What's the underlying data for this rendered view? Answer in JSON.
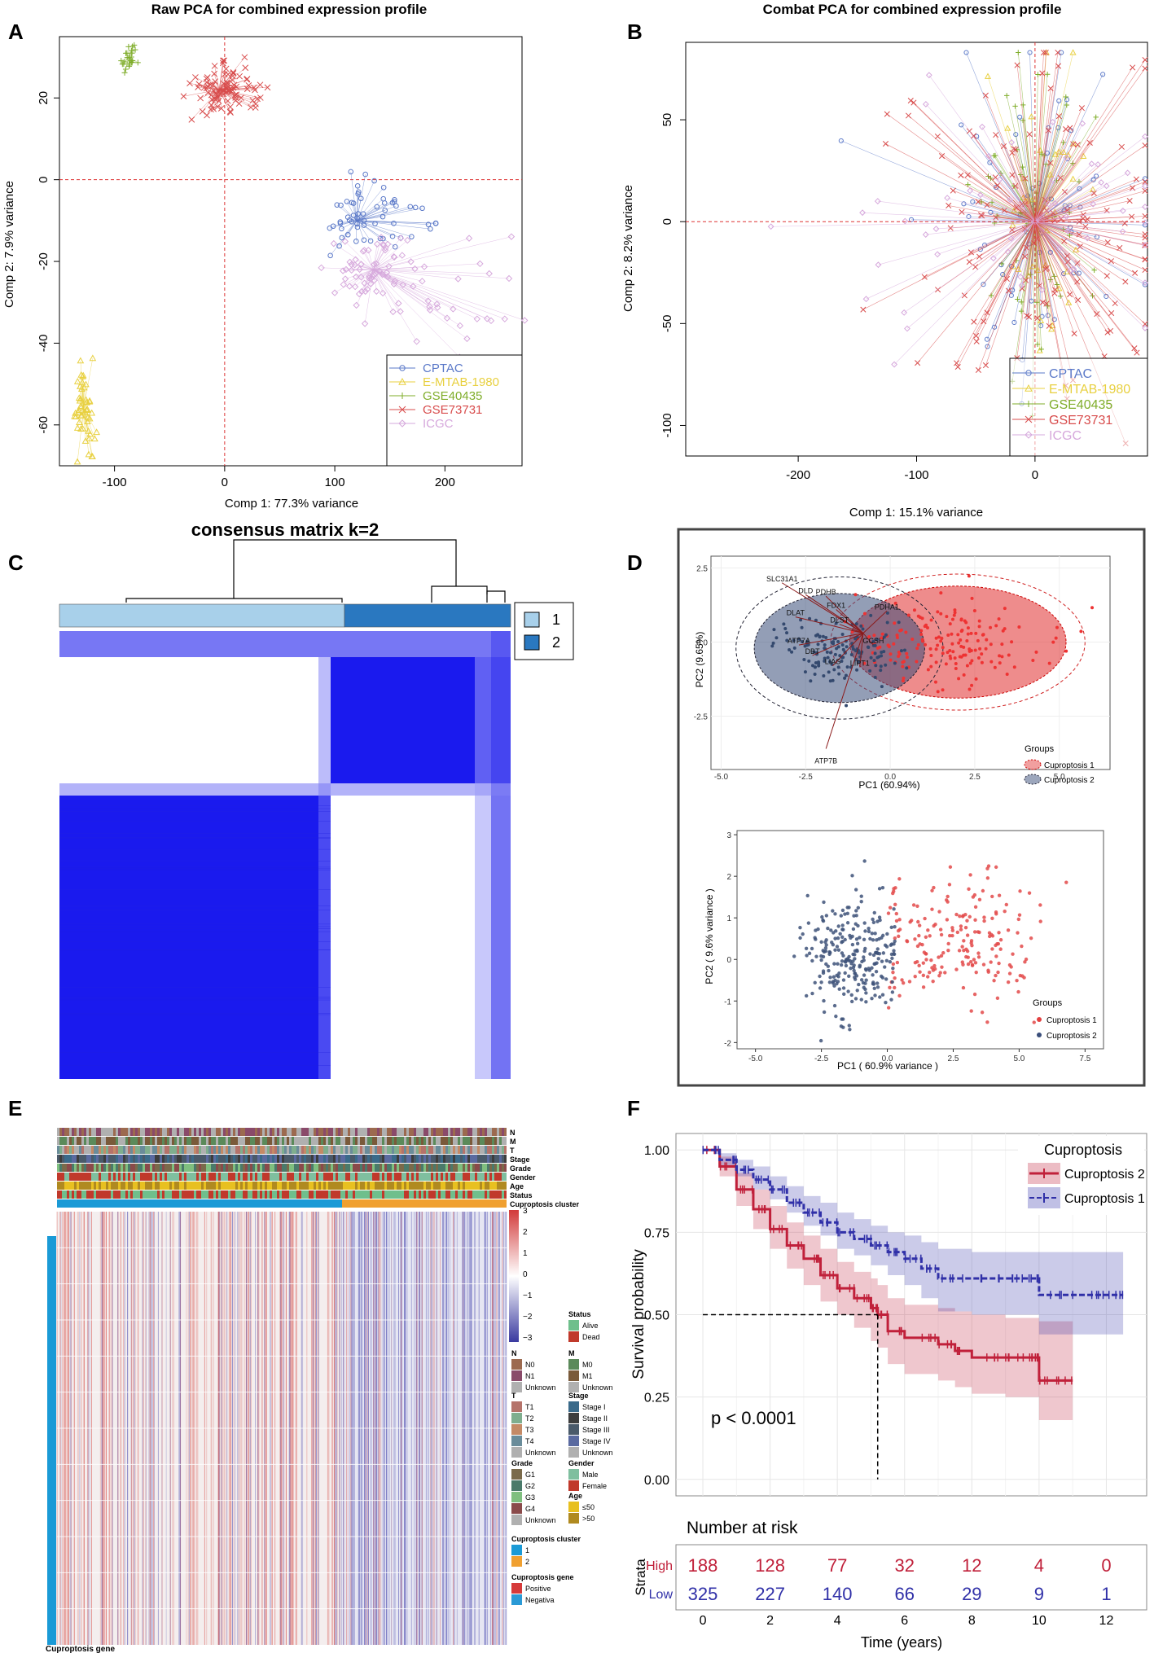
{
  "panel_labels": [
    "A",
    "B",
    "C",
    "D",
    "E",
    "F"
  ],
  "colors": {
    "cptac": "#5a78c8",
    "emtab": "#e8d040",
    "gse40435": "#7fad2a",
    "gse73731": "#d84c4c",
    "icgc": "#d6a8dc",
    "cluster1": "#a8d0ea",
    "cluster2": "#2a78c0",
    "consensus": "#1a1aee",
    "cup1_red": "#e34040",
    "cup2_blue": "#3a4e7a",
    "km_red": "#c0203a",
    "km_blue": "#3030a8"
  },
  "chart_data": [
    {
      "id": "A",
      "type": "scatter",
      "title": "Raw PCA for combined expression profile",
      "xlabel": "Comp 1: 77.3% variance",
      "ylabel": "Comp 2: 7.9% variance",
      "xlim": [
        -150,
        270
      ],
      "ylim": [
        -70,
        35
      ],
      "xticks": [
        -100,
        0,
        100,
        200
      ],
      "yticks": [
        -60,
        -40,
        -20,
        0,
        20
      ],
      "reference_lines": {
        "x": 0,
        "y": 0
      },
      "legend_position": "bottom-right",
      "series": [
        {
          "name": "CPTAC",
          "marker": "circle",
          "center": [
            120,
            -10
          ],
          "spread": [
            12,
            6
          ],
          "tail": [
            60,
            0
          ]
        },
        {
          "name": "E-MTAB-1980",
          "marker": "triangle",
          "center": [
            -128,
            -56
          ],
          "spread": [
            5,
            6
          ],
          "tail": [
            0,
            0
          ]
        },
        {
          "name": "GSE40435",
          "marker": "plus",
          "center": [
            -87,
            30
          ],
          "spread": [
            3,
            2
          ],
          "tail": [
            0,
            0
          ]
        },
        {
          "name": "GSE73731",
          "marker": "cross",
          "center": [
            -5,
            22
          ],
          "spread": [
            12,
            3
          ],
          "tail": [
            30,
            0
          ]
        },
        {
          "name": "ICGC",
          "marker": "diamond",
          "center": [
            135,
            -22
          ],
          "spread": [
            20,
            5
          ],
          "tail": [
            120,
            5
          ]
        }
      ]
    },
    {
      "id": "B",
      "type": "scatter",
      "title": "Combat PCA for combined expression profile",
      "xlabel": "Comp 1: 15.1% variance",
      "ylabel": "Comp 2: 8.2% variance",
      "xlim": [
        -295,
        95
      ],
      "ylim": [
        -115,
        88
      ],
      "xticks": [
        -200,
        -100,
        0
      ],
      "yticks": [
        -100,
        -50,
        0,
        50
      ],
      "reference_lines": {
        "x": 0,
        "y": 0
      },
      "legend_position": "bottom-right",
      "series": [
        {
          "name": "CPTAC",
          "marker": "circle"
        },
        {
          "name": "E-MTAB-1980",
          "marker": "triangle"
        },
        {
          "name": "GSE40435",
          "marker": "plus"
        },
        {
          "name": "GSE73731",
          "marker": "cross"
        },
        {
          "name": "ICGC",
          "marker": "diamond"
        }
      ]
    },
    {
      "id": "C",
      "type": "heatmap",
      "title": "consensus matrix k=2",
      "legend": [
        {
          "label": "1"
        },
        {
          "label": "2"
        }
      ]
    },
    {
      "id": "D1",
      "type": "scatter",
      "xlabel": "PC1 (60.94%)",
      "ylabel": "PC2 (9.65%)",
      "xlim": [
        -5.3,
        6.5
      ],
      "ylim": [
        -4.3,
        2.9
      ],
      "xticks": [
        -5.0,
        -2.5,
        0.0,
        2.5,
        5.0
      ],
      "yticks": [
        -2.5,
        0.0,
        2.5
      ],
      "xtick_labels": [
        "-5.0",
        "-2.5",
        "0.0",
        "2.5",
        "5.0"
      ],
      "ytick_labels": [
        "-2.5",
        "0.0",
        "2.5"
      ],
      "legend_title": "Groups",
      "groups": [
        {
          "name": "Cuproptosis 1",
          "center": [
            1.8,
            0.0
          ],
          "spread": [
            1.6,
            0.9
          ]
        },
        {
          "name": "Cuproptosis 2",
          "center": [
            -1.5,
            -0.2
          ],
          "spread": [
            0.9,
            0.8
          ]
        }
      ],
      "loadings": [
        {
          "gene": "SLC31A1",
          "x": -3.2,
          "y": 2.0
        },
        {
          "gene": "DLD",
          "x": -2.5,
          "y": 1.6
        },
        {
          "gene": "PDHB",
          "x": -1.9,
          "y": 1.55
        },
        {
          "gene": "FDX1",
          "x": -1.6,
          "y": 1.1
        },
        {
          "gene": "PDHA1",
          "x": -0.1,
          "y": 1.05
        },
        {
          "gene": "DLAT",
          "x": -2.8,
          "y": 0.85
        },
        {
          "gene": "DLST",
          "x": -1.5,
          "y": 0.6
        },
        {
          "gene": "ATP7A",
          "x": -2.7,
          "y": -0.1
        },
        {
          "gene": "GCSH",
          "x": -0.5,
          "y": -0.1
        },
        {
          "gene": "DBT",
          "x": -2.3,
          "y": -0.45
        },
        {
          "gene": "LIAS",
          "x": -1.7,
          "y": -0.8
        },
        {
          "gene": "LIPT1",
          "x": -0.9,
          "y": -0.85
        },
        {
          "gene": "ATP7B",
          "x": -1.9,
          "y": -3.6
        }
      ]
    },
    {
      "id": "D2",
      "type": "scatter",
      "xlabel": "PC1 ( 60.9% variance )",
      "ylabel": "PC2 ( 9.6% variance )",
      "xlim": [
        -5.7,
        8.2
      ],
      "ylim": [
        -2.15,
        3.1
      ],
      "xticks": [
        -5.0,
        -2.5,
        0.0,
        2.5,
        5.0,
        7.5
      ],
      "yticks": [
        -2,
        -1,
        0,
        1,
        2,
        3
      ],
      "xtick_labels": [
        "-5.0",
        "-2.5",
        "0.0",
        "2.5",
        "5.0",
        "7.5"
      ],
      "ytick_labels": [
        "-2",
        "-1",
        "0",
        "1",
        "2",
        "3"
      ],
      "legend_title": "Groups",
      "groups": [
        {
          "name": "Cuproptosis 1",
          "center": [
            2.3,
            0.4
          ],
          "spread": [
            1.7,
            0.75
          ]
        },
        {
          "name": "Cuproptosis 2",
          "center": [
            -1.2,
            0.0
          ],
          "spread": [
            1.0,
            0.75
          ]
        }
      ]
    },
    {
      "id": "E",
      "type": "heatmap",
      "annotation_rows": [
        "N",
        "M",
        "T",
        "Stage",
        "Grade",
        "Gender",
        "Age",
        "Status",
        "Cuproptosis cluster"
      ],
      "side_label": "Cuproptosis gene",
      "colorbar_ticks": [
        "3",
        "2",
        "1",
        "0",
        "−1",
        "−2",
        "−3"
      ],
      "legends": [
        {
          "title": "Status",
          "items": [
            "Alive",
            "Dead"
          ],
          "colors": [
            "#6fbf8c",
            "#c0392b"
          ]
        },
        {
          "title": "N",
          "items": [
            "N0",
            "N1",
            "Unknown"
          ],
          "colors": [
            "#9c6a4f",
            "#8a4a6a",
            "#b0b0b0"
          ]
        },
        {
          "title": "M",
          "items": [
            "M0",
            "M1",
            "Unknown"
          ],
          "colors": [
            "#5b8a5a",
            "#7a5a3a",
            "#b0b0b0"
          ]
        },
        {
          "title": "T",
          "items": [
            "T1",
            "T2",
            "T3",
            "T4",
            "Unknown"
          ],
          "colors": [
            "#b5736a",
            "#7fae8e",
            "#c48a66",
            "#6a8c9a",
            "#b0b0b0"
          ]
        },
        {
          "title": "Stage",
          "items": [
            "Stage I",
            "Stage II",
            "Stage III",
            "Stage IV",
            "Unknown"
          ],
          "colors": [
            "#3a6a8a",
            "#3d3d3d",
            "#4a5a6a",
            "#5a6aa0",
            "#b0b0b0"
          ]
        },
        {
          "title": "Grade",
          "items": [
            "G1",
            "G2",
            "G3",
            "G4",
            "Unknown"
          ],
          "colors": [
            "#7a6a4a",
            "#4a7a6a",
            "#7fbf7f",
            "#8a4a4a",
            "#b0b0b0"
          ]
        },
        {
          "title": "Gender",
          "items": [
            "Male",
            "Female"
          ],
          "colors": [
            "#7fbf9f",
            "#c0392b"
          ]
        },
        {
          "title": "Age",
          "items": [
            "≤50",
            ">50"
          ],
          "colors": [
            "#e8c020",
            "#b08a20"
          ]
        },
        {
          "title": "Cuproptosis cluster",
          "items": [
            "1",
            "2"
          ],
          "colors": [
            "#1a9ad6",
            "#f0a030"
          ]
        },
        {
          "title": "Cuproptosis gene",
          "items": [
            "Positive",
            "Negativa"
          ],
          "colors": [
            "#d63a3a",
            "#2a9ad6"
          ]
        }
      ]
    },
    {
      "id": "F",
      "type": "line",
      "title": "",
      "xlabel": "Time (years)",
      "ylabel": "Survival probability",
      "xlim": [
        -0.8,
        13.2
      ],
      "ylim": [
        -0.05,
        1.05
      ],
      "xticks": [
        0,
        2,
        4,
        6,
        8,
        10,
        12
      ],
      "yticks": [
        0.0,
        0.25,
        0.5,
        0.75,
        1.0
      ],
      "xtick_labels": [
        "0",
        "2",
        "4",
        "6",
        "8",
        "10",
        "12"
      ],
      "ytick_labels": [
        "0.00",
        "0.25",
        "0.50",
        "0.75",
        "1.00"
      ],
      "legend_title": "Cuproptosis",
      "annotation": "p < 0.0001",
      "median_line": {
        "y": 0.5,
        "x": 5.2
      },
      "series": [
        {
          "name": "Cuproptosis 2",
          "x": [
            0,
            0.5,
            1,
            1.5,
            2,
            2.5,
            3,
            3.5,
            4,
            4.5,
            5,
            5.2,
            5.5,
            6,
            7,
            7.5,
            8,
            9,
            9.5,
            9.8,
            10,
            10.5,
            11
          ],
          "y": [
            1.0,
            0.95,
            0.88,
            0.82,
            0.76,
            0.71,
            0.67,
            0.62,
            0.58,
            0.55,
            0.52,
            0.5,
            0.45,
            0.43,
            0.41,
            0.39,
            0.37,
            0.37,
            0.37,
            0.37,
            0.3,
            0.3,
            0.3
          ],
          "lower": [
            1.0,
            0.92,
            0.83,
            0.76,
            0.7,
            0.64,
            0.59,
            0.54,
            0.5,
            0.46,
            0.42,
            0.4,
            0.35,
            0.32,
            0.3,
            0.28,
            0.26,
            0.25,
            0.25,
            0.25,
            0.18,
            0.18,
            0.18
          ],
          "upper": [
            1.0,
            0.98,
            0.93,
            0.88,
            0.83,
            0.78,
            0.74,
            0.7,
            0.66,
            0.63,
            0.61,
            0.59,
            0.55,
            0.53,
            0.52,
            0.51,
            0.5,
            0.49,
            0.49,
            0.49,
            0.48,
            0.48,
            0.48
          ]
        },
        {
          "name": "Cuproptosis 1",
          "x": [
            0,
            0.5,
            1,
            1.5,
            2,
            2.5,
            3,
            3.5,
            4,
            4.5,
            5,
            5.5,
            6,
            6.5,
            7,
            8,
            9,
            9.5,
            10,
            11,
            12,
            12.5
          ],
          "y": [
            1.0,
            0.97,
            0.94,
            0.91,
            0.88,
            0.84,
            0.81,
            0.78,
            0.75,
            0.73,
            0.71,
            0.69,
            0.67,
            0.64,
            0.61,
            0.61,
            0.61,
            0.61,
            0.56,
            0.56,
            0.56,
            0.56
          ],
          "lower": [
            1.0,
            0.95,
            0.92,
            0.88,
            0.85,
            0.81,
            0.77,
            0.74,
            0.7,
            0.68,
            0.65,
            0.62,
            0.59,
            0.55,
            0.51,
            0.5,
            0.5,
            0.5,
            0.44,
            0.44,
            0.44,
            0.44
          ],
          "upper": [
            1.0,
            0.99,
            0.97,
            0.95,
            0.92,
            0.89,
            0.86,
            0.84,
            0.81,
            0.79,
            0.77,
            0.75,
            0.74,
            0.72,
            0.7,
            0.69,
            0.69,
            0.69,
            0.69,
            0.69,
            0.69,
            0.69
          ]
        }
      ],
      "risk_table": {
        "title": "Number at risk",
        "strata_label": "Strata",
        "rows": [
          {
            "label": "High",
            "values": [
              "188",
              "128",
              "77",
              "32",
              "12",
              "4",
              "0"
            ]
          },
          {
            "label": "Low",
            "values": [
              "325",
              "227",
              "140",
              "66",
              "29",
              "9",
              "1"
            ]
          }
        ]
      }
    }
  ]
}
